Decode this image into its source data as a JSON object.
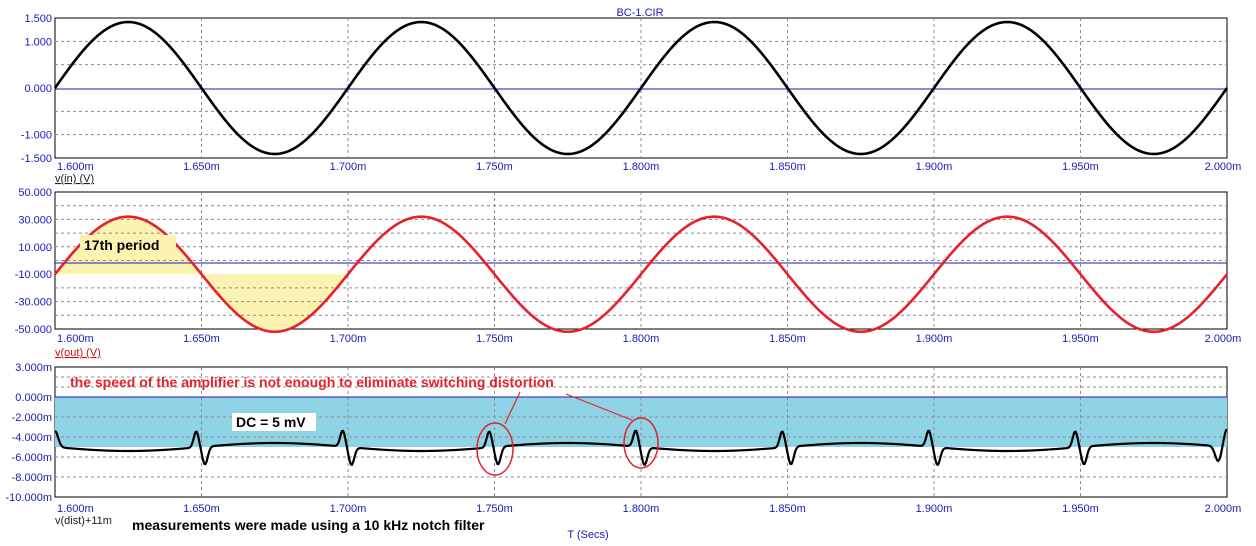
{
  "title": "BC-1.CIR",
  "x_axis_title": "T (Secs)",
  "x_tick_labels": [
    "1.600m",
    "1.650m",
    "1.700m",
    "1.750m",
    "1.800m",
    "1.850m",
    "1.900m",
    "1.950m",
    "2.000m"
  ],
  "colors": {
    "axis_text": "#1a1ab8",
    "zero_line": "#1a1ab8",
    "grid": "#8c8c8c",
    "vin": "#000000",
    "vout": "#e8202a",
    "vdist": "#000000",
    "period_fill": "#fdf3b0",
    "dc_fill": "#8fd3e6",
    "note_red": "#e8202a"
  },
  "panels": [
    {
      "id": "vin",
      "trace_label": "v(in) (V)",
      "y_tick_labels": [
        "1.500",
        "1.000",
        "0.000",
        "-1.000",
        "-1.500"
      ]
    },
    {
      "id": "vout",
      "trace_label": "v(out) (V)",
      "y_tick_labels": [
        "50.000",
        "30.000",
        "10.000",
        "-10.000",
        "-30.000",
        "-50.000"
      ],
      "period_label": "17th period"
    },
    {
      "id": "vdist",
      "trace_label": "v(dist)+11m",
      "y_tick_labels": [
        "3.000m",
        "0.000m",
        "-2.000m",
        "-4.000m",
        "-6.000m",
        "-8.000m",
        "-10.000m"
      ],
      "dc_label": "DC = 5 mV"
    }
  ],
  "annotations": {
    "speed_note": "the speed of the amplifier is not enough to eliminate switching distortion",
    "notch_note": "measurements were made using a 10 kHz notch filter"
  },
  "chart_data": [
    {
      "type": "line",
      "xlabel": "T (Secs)",
      "ylabel": "v(in) (V)",
      "xlim": [
        0.0016,
        0.002
      ],
      "ylim": [
        -1.5,
        1.5
      ],
      "grid": true,
      "series": [
        {
          "name": "v(in) (V)",
          "function": "sine",
          "amplitude": 1.414,
          "frequency_hz": 10000,
          "phase_deg": 0,
          "offset": 0
        }
      ]
    },
    {
      "type": "line",
      "xlabel": "T (Secs)",
      "ylabel": "v(out) (V)",
      "xlim": [
        0.0016,
        0.002
      ],
      "ylim": [
        -50,
        50
      ],
      "grid": true,
      "series": [
        {
          "name": "v(out) (V)",
          "function": "sine",
          "amplitude": 42,
          "frequency_hz": 10000,
          "phase_deg": 0,
          "offset": -10
        }
      ]
    },
    {
      "type": "line",
      "xlabel": "T (Secs)",
      "ylabel": "v(dist)+11m",
      "xlim": [
        0.0016,
        0.002
      ],
      "ylim": [
        -0.01,
        0.003
      ],
      "grid": true,
      "series": [
        {
          "name": "v(dist)+11m",
          "baseline": -0.005,
          "glitch_times": [
            0.00165,
            0.0017,
            0.00175,
            0.0018,
            0.00185,
            0.0019,
            0.00195
          ],
          "glitch_amplitude": 0.0016
        }
      ]
    }
  ]
}
